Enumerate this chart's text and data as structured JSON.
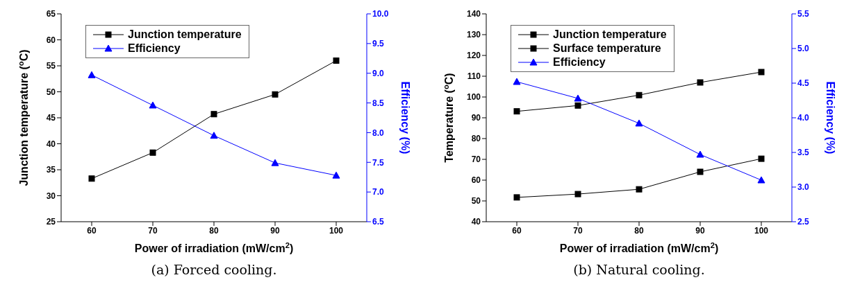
{
  "chart_data": [
    {
      "type": "line",
      "xlabel": "Power of irradiation (mW/cm$^{2}$)",
      "ylabel": "Junction temperature ($^{o}$C)",
      "y2label": "Efficiency (%)",
      "annotations": [
        "(a) Forced cooling."
      ],
      "x": [
        60,
        70,
        80,
        90,
        100
      ],
      "xlim": [
        55,
        105
      ],
      "xticks": [
        60,
        70,
        80,
        90,
        100
      ],
      "ylim": [
        25,
        65
      ],
      "yticks": [
        25,
        30,
        35,
        40,
        45,
        50,
        55,
        60,
        65
      ],
      "y2lim": [
        6.5,
        10
      ],
      "y2ticks": [
        {
          "value": 6.5,
          "label": "6.5"
        },
        {
          "value": 7,
          "label": "7.0"
        },
        {
          "value": 7.5,
          "label": "7.5"
        },
        {
          "value": 8,
          "label": "8.0"
        },
        {
          "value": 8.5,
          "label": "8.5"
        },
        {
          "value": 9,
          "label": "9.0"
        },
        {
          "value": 9.5,
          "label": "9.5"
        },
        {
          "value": 10,
          "label": "10.0"
        }
      ],
      "grid": false,
      "legend": "top left",
      "line_style": "solid",
      "series": [
        {
          "name": "Junction temperature",
          "color": "#000000",
          "marker": "square",
          "values": [
            33.3,
            38.3,
            45.7,
            49.5,
            56.0
          ]
        },
        {
          "name": "Efficiency",
          "color": "#0000ff",
          "marker": "triangle",
          "axis": "y2",
          "values": [
            8.97,
            8.46,
            7.95,
            7.49,
            7.28
          ]
        }
      ]
    },
    {
      "type": "line",
      "xlabel": "Power of irradiation (mW/cm$^{2}$)",
      "ylabel": "Temperature ($^{o}$C)",
      "y2label": "Efficiency (%)",
      "annotations": [
        "(b) Natural cooling."
      ],
      "x": [
        60,
        70,
        80,
        90,
        100
      ],
      "xlim": [
        55,
        105
      ],
      "xticks": [
        60,
        70,
        80,
        90,
        100
      ],
      "ylim": [
        40,
        140
      ],
      "yticks": [
        40,
        50,
        60,
        70,
        80,
        90,
        100,
        110,
        120,
        130,
        140
      ],
      "y2lim": [
        2.5,
        5.5
      ],
      "y2ticks": [
        2.5,
        {
          "value": 3,
          "label": "3.0"
        },
        3.5,
        {
          "value": 4,
          "label": "4.0"
        },
        4.5,
        {
          "value": 5,
          "label": "5.0"
        },
        5.5
      ],
      "grid": false,
      "legend": "top left",
      "line_style": "solid",
      "series": [
        {
          "name": "Junction temperature",
          "color": "#000000",
          "marker": "square",
          "values": [
            93.1,
            95.9,
            100.9,
            107,
            112
          ]
        },
        {
          "name": "Surface temperature",
          "color": "#000000",
          "marker": "square",
          "values": [
            51.7,
            53.3,
            55.6,
            64,
            70.3
          ]
        },
        {
          "name": "Efficiency",
          "color": "#0000ff",
          "marker": "triangle",
          "axis": "y2",
          "values": [
            4.52,
            4.28,
            3.92,
            3.47,
            3.1
          ]
        }
      ]
    }
  ]
}
